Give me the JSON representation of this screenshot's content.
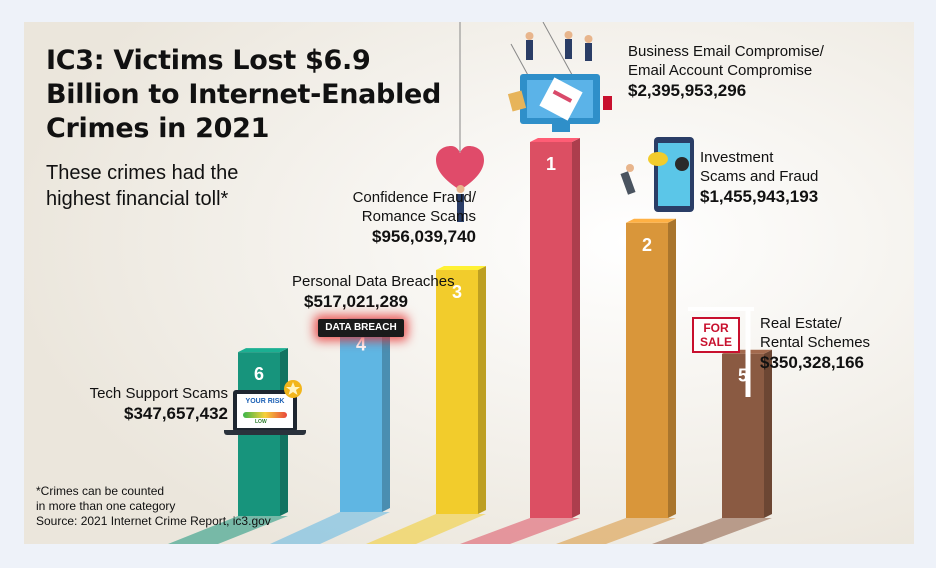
{
  "title": "IC3: Victims Lost $6.9 Billion to Internet-Enabled Crimes in 2021",
  "subtitle": "These crimes had the highest financial toll*",
  "footnote_line1": "*Crimes can be counted",
  "footnote_line2": "in more than one category",
  "source": "Source: 2021 Internet Crime Report, ic3.gov",
  "decor": {
    "data_breach_badge": "DATA BREACH",
    "for_sale_sign_top": "FOR",
    "for_sale_sign_bottom": "SALE",
    "risk_screen_label": "YOUR RISK",
    "risk_meter_label": "LOW"
  },
  "chart_data": {
    "type": "bar",
    "unit": "USD",
    "categories": [
      "Business Email Compromise/ Email Account Compromise",
      "Investment Scams and Fraud",
      "Confidence Fraud/ Romance Scams",
      "Personal Data Breaches",
      "Real Estate/ Rental Schemes",
      "Tech Support Scams"
    ],
    "ranks": [
      1,
      2,
      3,
      4,
      5,
      6
    ],
    "values": [
      2395953296,
      1455943193,
      956039740,
      517021289,
      350328166,
      347657432
    ],
    "value_labels": [
      "$2,395,953,296",
      "$1,455,943,193",
      "$956,039,740",
      "$517,021,289",
      "$350,328,166",
      "$347,657,432"
    ],
    "label_lines": [
      [
        "Business Email Compromise/",
        "Email Account Compromise"
      ],
      [
        "Investment",
        "Scams and Fraud"
      ],
      [
        "Confidence Fraud/",
        "Romance Scams"
      ],
      [
        "Personal Data Breaches"
      ],
      [
        "Real Estate/",
        "Rental Schemes"
      ],
      [
        "Tech Support Scams"
      ]
    ],
    "colors": [
      "#dc4f63",
      "#d9963a",
      "#f2cc2c",
      "#5fb6e3",
      "#8a5a42",
      "#17947c"
    ],
    "grid": false,
    "legend": "none"
  }
}
